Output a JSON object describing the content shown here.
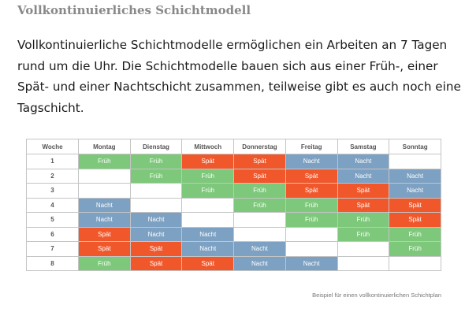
{
  "title": "Vollkontinuierliches Schichtmodell",
  "intro_lines": [
    "Vollkontinuierliche Schichtmodelle ermöglichen ein Arbeiten an 7 Tagen",
    "rund um die Uhr. Die Schichtmodelle bauen sich aus einer Früh-, einer",
    "Spät- und einer Nachtschicht zusammen, teilweise gibt es auch noch eine",
    "Tagschicht."
  ],
  "table": {
    "headers": [
      "Woche",
      "Montag",
      "Dienstag",
      "Mittwoch",
      "Donnerstag",
      "Freitag",
      "Samstag",
      "Sonntag"
    ],
    "rows": [
      {
        "week": "1",
        "cells": [
          "Früh",
          "Früh",
          "Spät",
          "Spät",
          "Nacht",
          "Nacht",
          ""
        ]
      },
      {
        "week": "2",
        "cells": [
          "",
          "Früh",
          "Früh",
          "Spät",
          "Spät",
          "Nacht",
          "Nacht"
        ]
      },
      {
        "week": "3",
        "cells": [
          "",
          "",
          "Früh",
          "Früh",
          "Spät",
          "Spät",
          "Nacht"
        ]
      },
      {
        "week": "4",
        "cells": [
          "Nacht",
          "",
          "",
          "Früh",
          "Früh",
          "Spät",
          "Spät"
        ]
      },
      {
        "week": "5",
        "cells": [
          "Nacht",
          "Nacht",
          "",
          "",
          "Früh",
          "Früh",
          "Spät"
        ]
      },
      {
        "week": "6",
        "cells": [
          "Spät",
          "Nacht",
          "Nacht",
          "",
          "",
          "Früh",
          "Früh"
        ]
      },
      {
        "week": "7",
        "cells": [
          "Spät",
          "Spät",
          "Nacht",
          "Nacht",
          "",
          "",
          "Früh"
        ]
      },
      {
        "week": "8",
        "cells": [
          "Früh",
          "Spät",
          "Spät",
          "Nacht",
          "Nacht",
          "",
          ""
        ]
      }
    ]
  },
  "caption": "Beispiel für einen vollkontinuierlichen Schichtplan",
  "colors": {
    "Früh": "#7ec87b",
    "Spät": "#f0582c",
    "Nacht": "#7da1c2"
  }
}
